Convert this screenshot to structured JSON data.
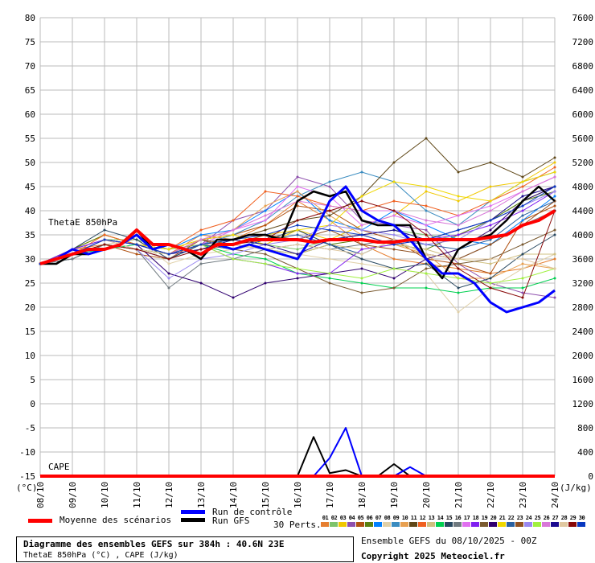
{
  "chart_data": {
    "type": "line",
    "title": "Diagramme des ensembles GEFS sur 384h : 40.6N 23E",
    "subtitle": "ThetaE 850hPa (°C) , CAPE (J/kg)",
    "ensemble_label": "Ensemble GEFS du 08/10/2025 - 00Z",
    "copyright": "Copyright 2025 Meteociel.fr",
    "left_axis": {
      "label": "(°C)",
      "ylim": [
        -15,
        80
      ],
      "ticks": [
        80,
        75,
        70,
        65,
        60,
        55,
        50,
        45,
        40,
        35,
        30,
        25,
        20,
        15,
        10,
        5,
        0,
        -5,
        -10,
        -15
      ]
    },
    "right_axis": {
      "label": "(J/kg)",
      "ylim": [
        0,
        7600
      ],
      "ticks": [
        7600,
        7200,
        6800,
        6400,
        6000,
        5600,
        5200,
        4800,
        4400,
        4000,
        3600,
        3200,
        2800,
        2400,
        2000,
        1600,
        1200,
        800,
        400,
        0
      ]
    },
    "x_ticks": [
      "08/10",
      "09/10",
      "10/10",
      "11/10",
      "12/10",
      "13/10",
      "14/10",
      "15/10",
      "16/10",
      "17/10",
      "18/10",
      "19/10",
      "20/10",
      "21/10",
      "22/10",
      "23/10",
      "24/10"
    ],
    "annotations": {
      "thetae": "ThetaE 850hPa",
      "cape": "CAPE"
    },
    "grid": true,
    "legend": {
      "mean": "Moyenne des scénarios",
      "control": "Run de contrôle",
      "gfs": "Run GFS",
      "perts": "30 Perts."
    },
    "colors": {
      "mean": "#ff0000",
      "control": "#0000ff",
      "gfs": "#000000"
    },
    "mean": [
      29,
      30,
      31,
      32,
      32,
      33,
      36,
      33,
      33,
      32,
      31,
      33,
      33,
      34,
      34,
      34,
      34,
      33.5,
      34,
      34,
      34,
      33.5,
      33.5,
      34,
      34,
      34,
      34,
      34,
      34.5,
      35,
      37,
      38,
      40
    ],
    "control": [
      29,
      30,
      32,
      31,
      32,
      33,
      35,
      32,
      33,
      32,
      31,
      33,
      32,
      33,
      32,
      31,
      30,
      35,
      42,
      45,
      40,
      38,
      37,
      34,
      30,
      27,
      27,
      25,
      21,
      19,
      20,
      21,
      23.5
    ],
    "gfs": [
      29,
      29,
      31,
      31,
      32,
      33,
      36,
      32,
      33,
      32,
      30,
      34,
      34,
      35,
      35,
      34,
      42,
      44,
      43,
      44,
      38,
      37,
      37,
      37,
      30,
      26,
      32,
      34,
      35,
      38,
      42,
      45,
      42
    ],
    "cape_control": [
      0,
      0,
      0,
      0,
      0,
      0,
      0,
      0,
      0,
      0,
      0,
      0,
      0,
      0,
      0,
      0,
      0,
      0,
      300,
      800,
      0,
      0,
      0,
      150,
      0,
      0,
      0,
      0,
      0,
      0,
      0,
      0,
      0
    ],
    "cape_gfs": [
      0,
      0,
      0,
      0,
      0,
      0,
      0,
      0,
      0,
      0,
      0,
      0,
      0,
      0,
      0,
      0,
      0,
      650,
      50,
      100,
      0,
      0,
      200,
      0,
      0,
      0,
      0,
      0,
      0,
      0,
      0,
      0,
      0
    ],
    "perturbations": [
      {
        "id": "01",
        "color": "#e67e30",
        "values": [
          29,
          32,
          33,
          32,
          31,
          35,
          34,
          37,
          42,
          38,
          33,
          30,
          29,
          28,
          27,
          28,
          30
        ]
      },
      {
        "id": "02",
        "color": "#7dc36a",
        "values": [
          29,
          31,
          34,
          34,
          32,
          33,
          34,
          33,
          32,
          34,
          35,
          36,
          35,
          34,
          38,
          42,
          45
        ]
      },
      {
        "id": "03",
        "color": "#f0c800",
        "values": [
          29,
          32,
          35,
          33,
          31,
          34,
          33,
          35,
          36,
          34,
          37,
          39,
          44,
          42,
          45,
          46,
          50
        ]
      },
      {
        "id": "04",
        "color": "#8e4fad",
        "values": [
          29,
          31,
          34,
          32,
          30,
          33,
          38,
          40,
          47,
          45,
          38,
          37,
          36,
          29,
          25,
          23,
          22
        ]
      },
      {
        "id": "05",
        "color": "#b05010",
        "values": [
          29,
          30,
          33,
          31,
          30,
          34,
          35,
          37,
          41,
          40,
          36,
          34,
          30,
          29,
          27,
          38,
          41
        ]
      },
      {
        "id": "06",
        "color": "#5a8010",
        "values": [
          29,
          32,
          35,
          33,
          31,
          33,
          33,
          32,
          31,
          33,
          34,
          33,
          32,
          35,
          38,
          42,
          44
        ]
      },
      {
        "id": "07",
        "color": "#0080ff",
        "values": [
          29,
          32,
          34,
          33,
          32,
          35,
          36,
          40,
          44,
          38,
          36,
          40,
          37,
          34,
          33,
          38,
          43
        ]
      },
      {
        "id": "08",
        "color": "#e0d0a8",
        "values": [
          29,
          31,
          33,
          34,
          29,
          31,
          32,
          33,
          31,
          30,
          29,
          28,
          27,
          19,
          24,
          28,
          31
        ]
      },
      {
        "id": "09",
        "color": "#3a8cc0",
        "values": [
          29,
          30,
          33,
          32,
          30,
          33,
          35,
          38,
          43,
          46,
          48,
          46,
          40,
          37,
          42,
          46,
          48
        ]
      },
      {
        "id": "10",
        "color": "#e8a050",
        "values": [
          29,
          31,
          33,
          32,
          31,
          34,
          36,
          41,
          44,
          39,
          35,
          33,
          31,
          26,
          26,
          29,
          28
        ]
      },
      {
        "id": "11",
        "color": "#604818",
        "values": [
          29,
          31,
          34,
          33,
          31,
          33,
          34,
          36,
          38,
          39,
          43,
          50,
          55,
          48,
          50,
          47,
          51
        ]
      },
      {
        "id": "12",
        "color": "#f06020",
        "values": [
          29,
          31,
          35,
          33,
          32,
          36,
          38,
          44,
          43,
          41,
          40,
          42,
          41,
          39,
          42,
          45,
          49
        ]
      },
      {
        "id": "13",
        "color": "#d0c080",
        "values": [
          29,
          31,
          34,
          33,
          32,
          34,
          33,
          32,
          31,
          33,
          32,
          33,
          32,
          30,
          29,
          31,
          31
        ]
      },
      {
        "id": "14",
        "color": "#00d050",
        "values": [
          29,
          31,
          32,
          33,
          31,
          33,
          31,
          30,
          27,
          26,
          25,
          24,
          24,
          23,
          24,
          24,
          26
        ]
      },
      {
        "id": "15",
        "color": "#284860",
        "values": [
          29,
          32,
          36,
          34,
          30,
          33,
          32,
          34,
          36,
          33,
          30,
          28,
          29,
          24,
          26,
          31,
          35
        ]
      },
      {
        "id": "16",
        "color": "#707a80",
        "values": [
          29,
          30,
          33,
          32,
          24,
          29,
          30,
          32,
          33,
          32,
          33,
          34,
          31,
          30,
          33,
          37,
          40
        ]
      },
      {
        "id": "17",
        "color": "#e070f0",
        "values": [
          29,
          31,
          34,
          33,
          31,
          33,
          36,
          38,
          45,
          43,
          37,
          39,
          37,
          39,
          41,
          44,
          47
        ]
      },
      {
        "id": "18",
        "color": "#8020f0",
        "values": [
          29,
          32,
          34,
          33,
          31,
          33,
          30,
          29,
          27,
          27,
          32,
          33,
          34,
          35,
          37,
          40,
          44
        ]
      },
      {
        "id": "19",
        "color": "#7a5a30",
        "values": [
          29,
          31,
          33,
          32,
          31,
          34,
          32,
          31,
          28,
          25,
          23,
          24,
          28,
          29,
          30,
          33,
          36
        ]
      },
      {
        "id": "20",
        "color": "#300070",
        "values": [
          29,
          31,
          34,
          33,
          27,
          25,
          22,
          25,
          26,
          27,
          28,
          26,
          30,
          32,
          36,
          42,
          45
        ]
      },
      {
        "id": "21",
        "color": "#f0d800",
        "values": [
          29,
          31,
          34,
          33,
          32,
          34,
          35,
          33,
          36,
          37,
          43,
          46,
          45,
          43,
          42,
          46,
          48
        ]
      },
      {
        "id": "22",
        "color": "#2a60a0",
        "values": [
          29,
          31,
          33,
          32,
          31,
          33,
          32,
          34,
          35,
          33,
          31,
          34,
          33,
          32,
          34,
          39,
          42
        ]
      },
      {
        "id": "23",
        "color": "#905020",
        "values": [
          29,
          31,
          33,
          32,
          31,
          34,
          33,
          35,
          34,
          36,
          33,
          32,
          31,
          30,
          33,
          37,
          42
        ]
      },
      {
        "id": "24",
        "color": "#9a88f0",
        "values": [
          29,
          31,
          33,
          32,
          26,
          30,
          31,
          33,
          34,
          37,
          36,
          35,
          33,
          34,
          38,
          41,
          44
        ]
      },
      {
        "id": "25",
        "color": "#a0f040",
        "values": [
          29,
          31,
          33,
          32,
          31,
          33,
          30,
          29,
          28,
          27,
          26,
          28,
          27,
          26,
          25,
          26,
          28
        ]
      },
      {
        "id": "26",
        "color": "#d878d8",
        "values": [
          29,
          31,
          34,
          33,
          31,
          34,
          36,
          39,
          42,
          41,
          40,
          40,
          38,
          37,
          40,
          44,
          47
        ]
      },
      {
        "id": "27",
        "color": "#1a0a90",
        "values": [
          29,
          31,
          34,
          33,
          31,
          32,
          34,
          33,
          31,
          34,
          35,
          36,
          34,
          36,
          38,
          43,
          45
        ]
      },
      {
        "id": "28",
        "color": "#e0c8a0",
        "values": [
          29,
          31,
          34,
          32,
          31,
          33,
          33,
          32,
          33,
          32,
          31,
          34,
          31,
          30,
          30,
          30,
          28
        ]
      },
      {
        "id": "29",
        "color": "#880808",
        "values": [
          29,
          31,
          33,
          32,
          30,
          32,
          33,
          34,
          38,
          40,
          42,
          40,
          35,
          28,
          24,
          22,
          40
        ]
      },
      {
        "id": "30",
        "color": "#0838c0",
        "values": [
          29,
          31,
          34,
          33,
          31,
          33,
          34,
          35,
          37,
          36,
          35,
          33,
          34,
          36,
          38,
          41,
          45
        ]
      }
    ]
  }
}
